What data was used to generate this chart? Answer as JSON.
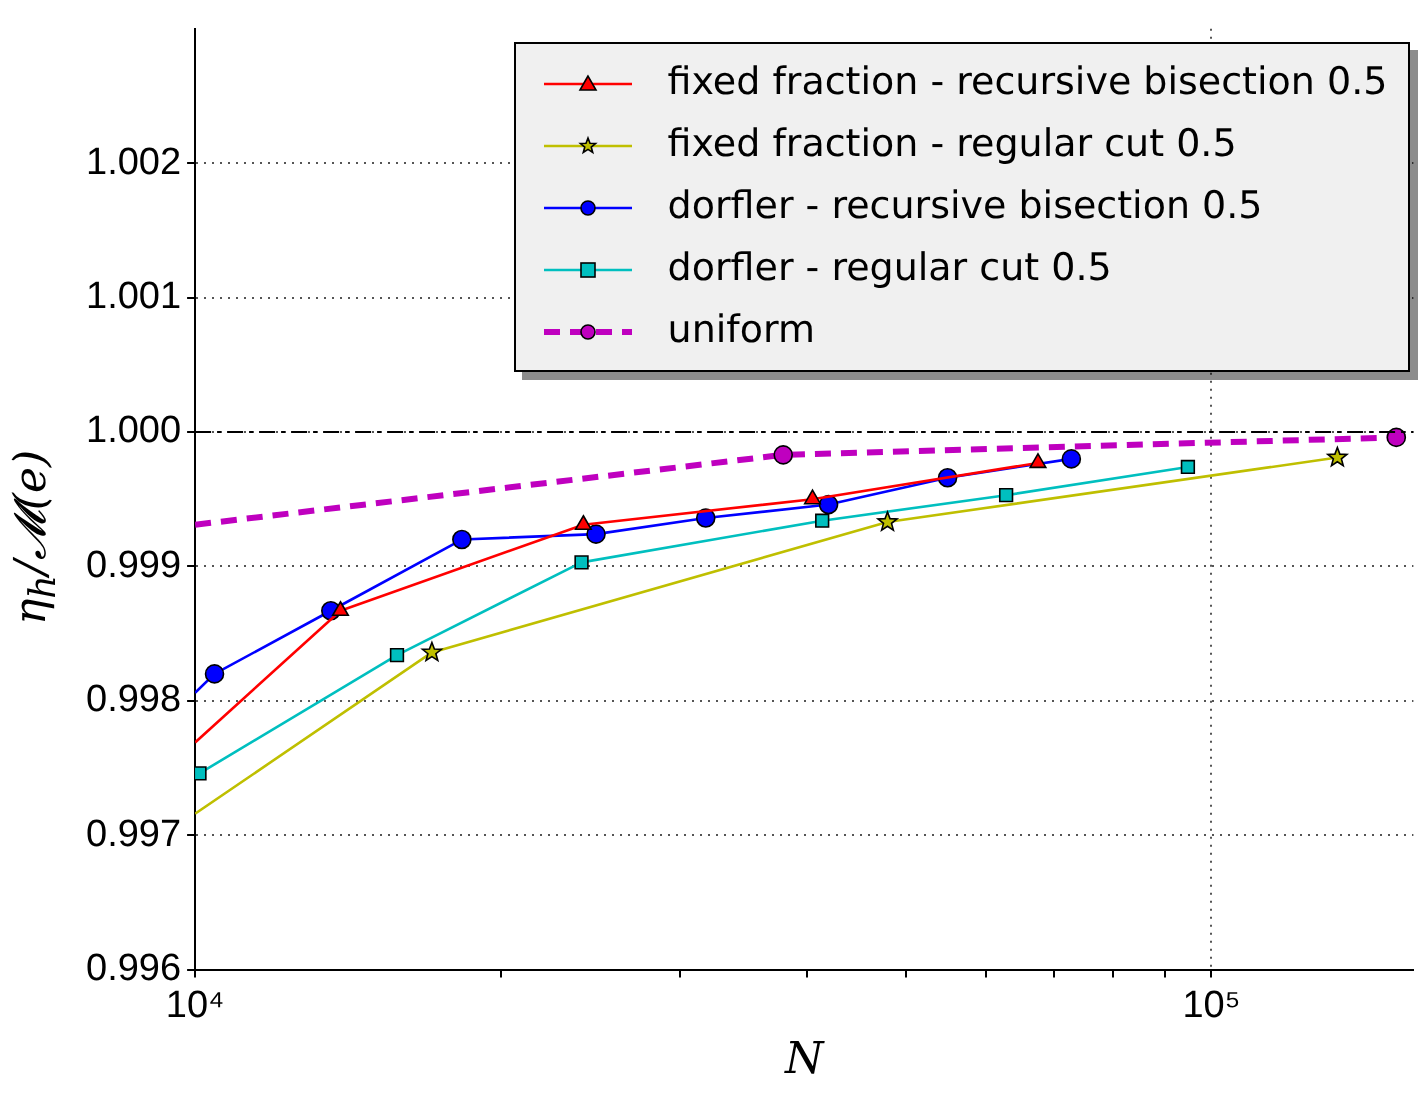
{
  "chart_data": {
    "type": "line",
    "xlabel": "N",
    "ylabel": "η$_{h}$/𝓜(e)",
    "log": "x",
    "xlim": [
      10000,
      158000
    ],
    "ylim": [
      0.996,
      1.003
    ],
    "xticks": [
      {
        "value": 10000,
        "label": "10⁴"
      },
      {
        "value": 20000,
        "label": null
      },
      {
        "value": 30000,
        "label": null
      },
      {
        "value": 40000,
        "label": null
      },
      {
        "value": 50000,
        "label": null
      },
      {
        "value": 60000,
        "label": null
      },
      {
        "value": 70000,
        "label": null
      },
      {
        "value": 80000,
        "label": null
      },
      {
        "value": 90000,
        "label": null
      },
      {
        "value": 100000,
        "label": "10⁵"
      }
    ],
    "yticks": [
      0.996,
      0.997,
      0.998,
      0.999,
      {
        "value": 1,
        "label": "1.000"
      },
      1.001,
      1.002
    ],
    "grid": true,
    "legend": "top right",
    "ref_lines": [
      {
        "axis": "y",
        "value": 1,
        "color": "#000000",
        "line_style": "dashdot"
      }
    ],
    "series": [
      {
        "name": "fixed fraction - recursive bisection 0.5",
        "color": "#ff0000",
        "marker": "triangle",
        "x": [
          10000,
          13900,
          24100,
          40500,
          67500
        ],
        "values": [
          0.99769,
          0.99867,
          0.99931,
          0.9995,
          0.99977
        ]
      },
      {
        "name": "fixed fraction - regular cut 0.5",
        "color": "#bfbf00",
        "marker": "star",
        "x": [
          10000,
          17100,
          48000,
          133000
        ],
        "values": [
          0.99716,
          0.99836,
          0.99933,
          0.99981
        ]
      },
      {
        "name": "dorfler - recursive bisection 0.5",
        "color": "#0000ff",
        "marker": "circle",
        "x": [
          10000,
          10450,
          13600,
          18300,
          24800,
          31800,
          42000,
          55000,
          72800
        ],
        "values": [
          0.99806,
          0.9982,
          0.99867,
          0.9992,
          0.99924,
          0.99936,
          0.99946,
          0.99966,
          0.9998
        ]
      },
      {
        "name": "dorfler - regular cut 0.5",
        "color": "#00bfbf",
        "marker": "square",
        "x": [
          10100,
          15800,
          24000,
          41400,
          62800,
          94800
        ],
        "values": [
          0.99746,
          0.99834,
          0.99903,
          0.99934,
          0.99953,
          0.99974
        ]
      },
      {
        "name": "uniform",
        "color": "#bf00bf",
        "marker": "circle",
        "line_style": "dashed",
        "x": [
          10000,
          37900,
          152000
        ],
        "values": [
          0.99931,
          0.99983,
          0.99996
        ]
      }
    ]
  }
}
